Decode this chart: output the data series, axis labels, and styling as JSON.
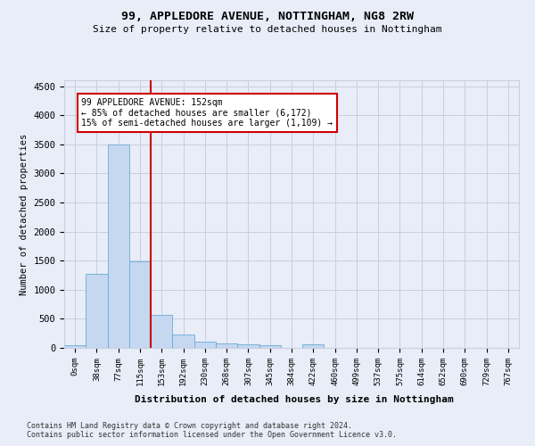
{
  "title1": "99, APPLEDORE AVENUE, NOTTINGHAM, NG8 2RW",
  "title2": "Size of property relative to detached houses in Nottingham",
  "xlabel": "Distribution of detached houses by size in Nottingham",
  "ylabel": "Number of detached properties",
  "bin_labels": [
    "0sqm",
    "38sqm",
    "77sqm",
    "115sqm",
    "153sqm",
    "192sqm",
    "230sqm",
    "268sqm",
    "307sqm",
    "345sqm",
    "384sqm",
    "422sqm",
    "460sqm",
    "499sqm",
    "537sqm",
    "575sqm",
    "614sqm",
    "652sqm",
    "690sqm",
    "729sqm",
    "767sqm"
  ],
  "bar_values": [
    45,
    1280,
    3500,
    1480,
    570,
    235,
    115,
    80,
    55,
    40,
    0,
    55,
    0,
    0,
    0,
    0,
    0,
    0,
    0,
    0,
    0
  ],
  "bar_color": "#c5d8f0",
  "bar_edge_color": "#6aaad4",
  "vline_color": "#cc0000",
  "annotation_text": "99 APPLEDORE AVENUE: 152sqm\n← 85% of detached houses are smaller (6,172)\n15% of semi-detached houses are larger (1,109) →",
  "annotation_box_color": "#ffffff",
  "annotation_box_edge": "#cc0000",
  "ylim": [
    0,
    4600
  ],
  "yticks": [
    0,
    500,
    1000,
    1500,
    2000,
    2500,
    3000,
    3500,
    4000,
    4500
  ],
  "footer1": "Contains HM Land Registry data © Crown copyright and database right 2024.",
  "footer2": "Contains public sector information licensed under the Open Government Licence v3.0.",
  "bg_color": "#e8edf8",
  "plot_bg_color": "#e8edf8",
  "grid_color": "#c8cfe0"
}
